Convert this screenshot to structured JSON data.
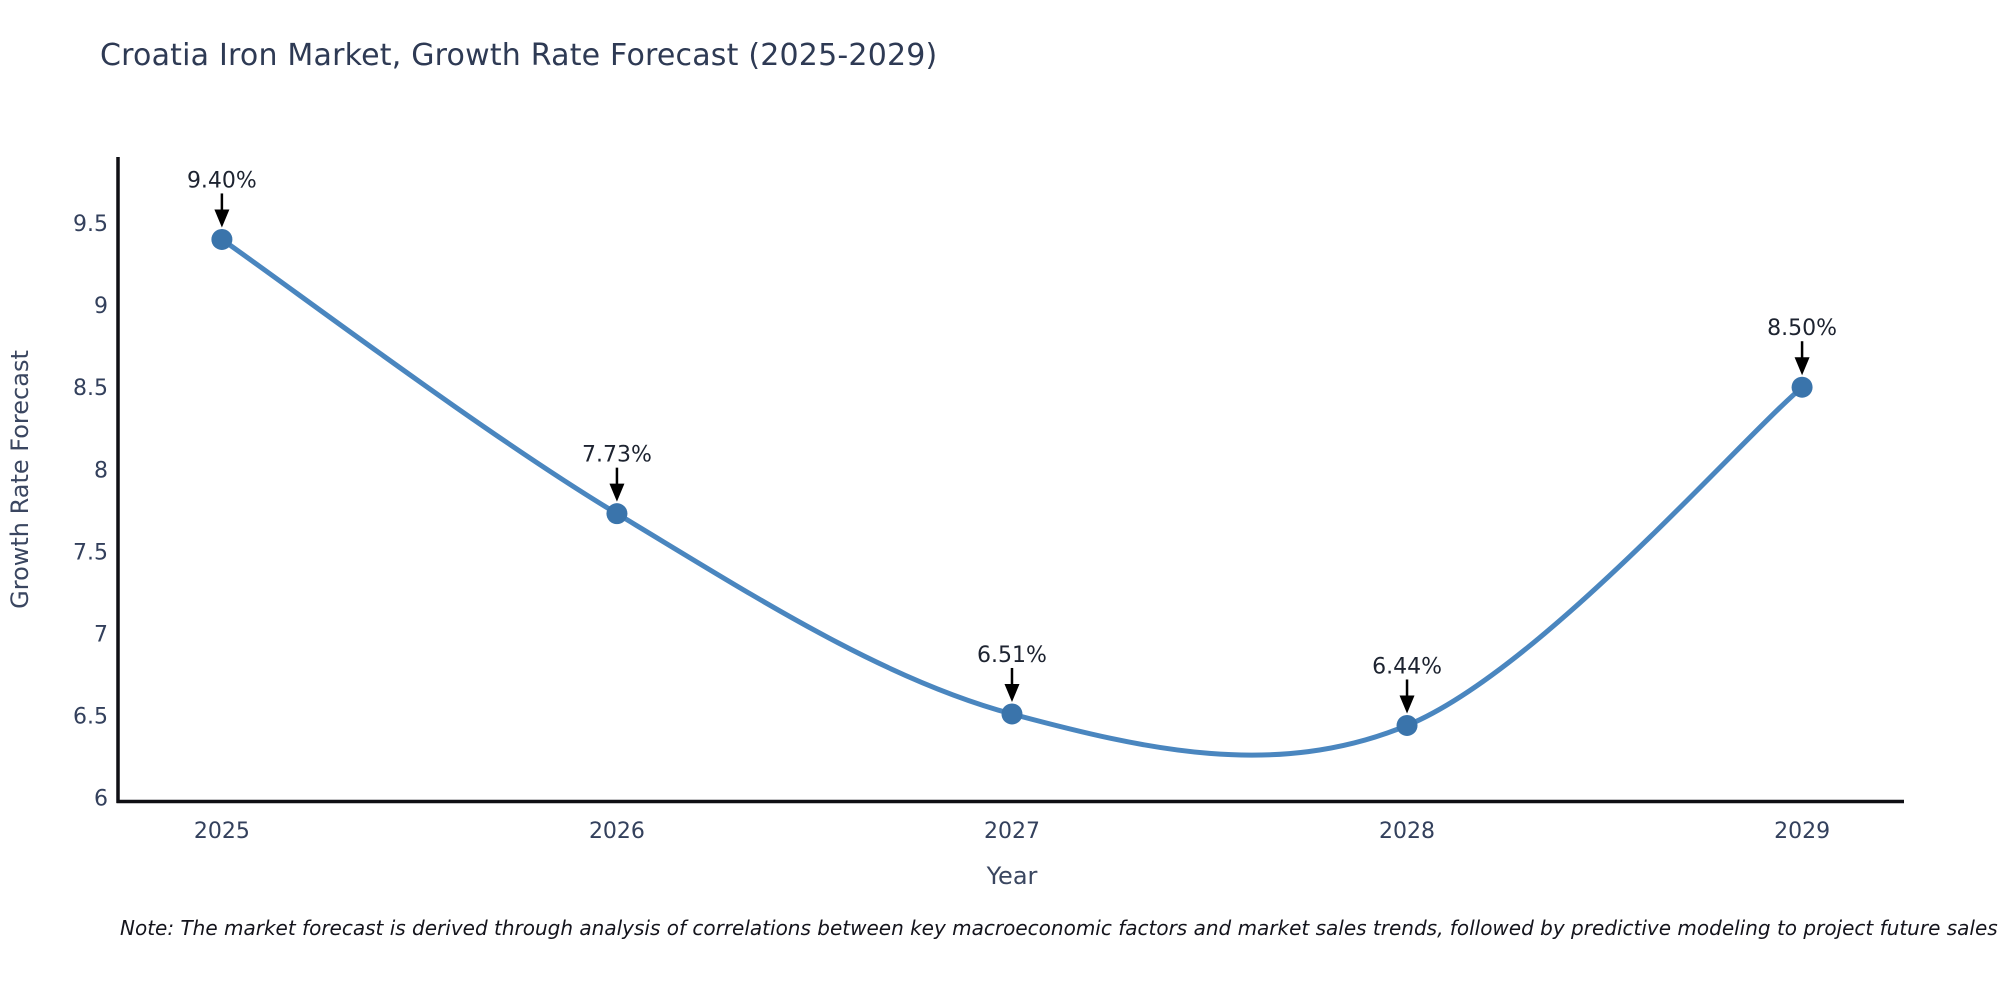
{
  "chart": {
    "note": "Note: The market forecast is derived through analysis of correlations between key macroeconomic factors and market sales trends, followed by predictive modeling to project future sales",
    "colors": {
      "line": "#4a86bf",
      "marker": "#3a74ab",
      "axis_line": "#0f0f14",
      "arrow": "#000000",
      "title_text": "#2e3a54",
      "tick_text": "#33405c",
      "annotation_text": "#1d2330"
    }
  },
  "chart_data": {
    "type": "line",
    "title": "Croatia Iron Market, Growth Rate Forecast (2025-2029)",
    "xlabel": "Year",
    "ylabel": "Growth Rate Forecast",
    "x": [
      2025,
      2026,
      2027,
      2028,
      2029
    ],
    "y": [
      9.4,
      7.73,
      6.51,
      6.44,
      8.5
    ],
    "point_labels": [
      "9.40%",
      "7.73%",
      "6.51%",
      "6.44%",
      "8.50%"
    ],
    "x_ticks": [
      2025,
      2026,
      2027,
      2028,
      2029
    ],
    "x_tick_labels": [
      "2025",
      "2026",
      "2027",
      "2028",
      "2029"
    ],
    "y_ticks": [
      6,
      6.5,
      7,
      7.5,
      8,
      8.5,
      9,
      9.5
    ],
    "y_tick_labels": [
      "6",
      "6.5",
      "7",
      "7.5",
      "8",
      "8.5",
      "9",
      "9.5"
    ],
    "xlim": [
      2024.737,
      2029.258
    ],
    "ylim": [
      5.98,
      9.896
    ],
    "line_shape": "spline",
    "grid": false,
    "legend_position": "none"
  }
}
